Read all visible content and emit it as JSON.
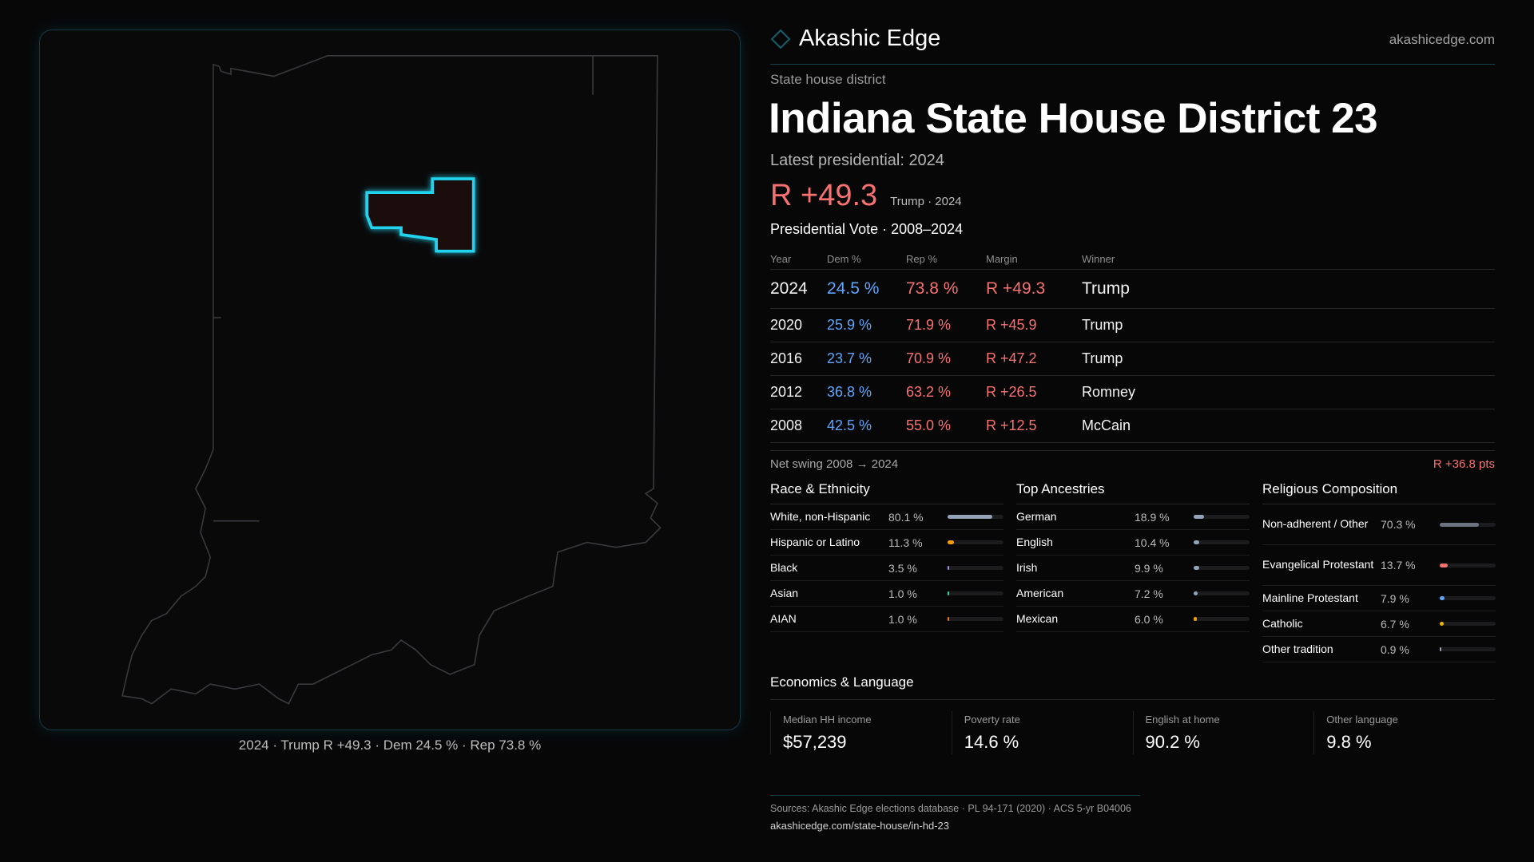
{
  "brand": {
    "name": "Akashic Edge",
    "site": "akashicedge.com",
    "icon": "diamond-icon",
    "accent": "#22d3ee"
  },
  "kind": "State house district",
  "title": "Indiana State House District 23",
  "latest": "Latest presidential: 2024",
  "headline": {
    "margin": "R +49.3",
    "sub": "Trump · 2024"
  },
  "map": {
    "caption": "2024 · Trump R +49.3 · Dem 24.5 % · Rep 73.8 %",
    "state": "Indiana",
    "highlight_color": "#22d3ee"
  },
  "vote": {
    "title": "Presidential Vote · 2008–2024",
    "headers": [
      "Year",
      "Dem %",
      "Rep %",
      "Margin",
      "Winner"
    ],
    "rows": [
      [
        "2024",
        "24.5 %",
        "73.8 %",
        "R +49.3",
        "Trump"
      ],
      [
        "2020",
        "25.9 %",
        "71.9 %",
        "R +45.9",
        "Trump"
      ],
      [
        "2016",
        "23.7 %",
        "70.9 %",
        "R +47.2",
        "Trump"
      ],
      [
        "2012",
        "36.8 %",
        "63.2 %",
        "R +26.5",
        "Romney"
      ],
      [
        "2008",
        "42.5 %",
        "55.0 %",
        "R +12.5",
        "McCain"
      ]
    ]
  },
  "swing": {
    "label": "Net swing 2008 → 2024",
    "value": "R +36.8 pts"
  },
  "race": {
    "title": "Race & Ethnicity",
    "items": [
      {
        "label": "White, non-Hispanic",
        "value": "80.1 %",
        "pct": 80.1,
        "color": "#94a3b8"
      },
      {
        "label": "Hispanic or Latino",
        "value": "11.3 %",
        "pct": 11.3,
        "color": "#f59e0b"
      },
      {
        "label": "Black",
        "value": "3.5 %",
        "pct": 3.5,
        "color": "#a78bfa"
      },
      {
        "label": "Asian",
        "value": "1.0 %",
        "pct": 1.0,
        "color": "#34d399"
      },
      {
        "label": "AIAN",
        "value": "1.0 %",
        "pct": 1.0,
        "color": "#f97316"
      }
    ]
  },
  "ancestry": {
    "title": "Top Ancestries",
    "items": [
      {
        "label": "German",
        "value": "18.9 %",
        "pct": 18.9,
        "color": "#94a3b8"
      },
      {
        "label": "English",
        "value": "10.4 %",
        "pct": 10.4,
        "color": "#94a3b8"
      },
      {
        "label": "Irish",
        "value": "9.9 %",
        "pct": 9.9,
        "color": "#94a3b8"
      },
      {
        "label": "American",
        "value": "7.2 %",
        "pct": 7.2,
        "color": "#94a3b8"
      },
      {
        "label": "Mexican",
        "value": "6.0 %",
        "pct": 6.0,
        "color": "#f59e0b"
      }
    ]
  },
  "religion": {
    "title": "Religious Composition",
    "items": [
      {
        "label": "Non-adherent / Other",
        "value": "70.3 %",
        "pct": 70.3,
        "color": "#6b7280"
      },
      {
        "label": "Evangelical Protestant",
        "value": "13.7 %",
        "pct": 13.7,
        "color": "#f87171"
      },
      {
        "label": "Mainline Protestant",
        "value": "7.9 %",
        "pct": 7.9,
        "color": "#60a5fa"
      },
      {
        "label": "Catholic",
        "value": "6.7 %",
        "pct": 6.7,
        "color": "#eab308"
      },
      {
        "label": "Other tradition",
        "value": "0.9 %",
        "pct": 0.9,
        "color": "#9ca3af"
      }
    ]
  },
  "econ": {
    "title": "Economics & Language",
    "cards": [
      {
        "label": "Median HH income",
        "value": "$57,239"
      },
      {
        "label": "Poverty rate",
        "value": "14.6 %"
      },
      {
        "label": "English at home",
        "value": "90.2 %"
      },
      {
        "label": "Other language",
        "value": "9.8 %"
      }
    ]
  },
  "footer": {
    "sources": "Sources: Akashic Edge elections database · PL 94-171 (2020) · ACS 5-yr B04006",
    "url": "akashicedge.com/state-house/in-hd-23"
  }
}
